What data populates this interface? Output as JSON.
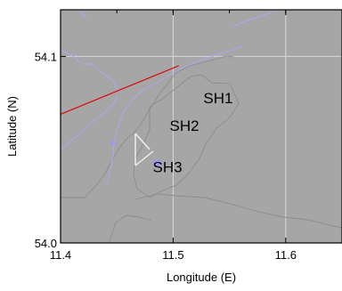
{
  "map": {
    "x_axis": {
      "label": "Longitude (E)",
      "range": [
        11.4,
        11.65
      ],
      "ticks": [
        {
          "value": 11.4,
          "label": "11.4"
        },
        {
          "value": 11.5,
          "label": "11.5"
        },
        {
          "value": 11.6,
          "label": "11.6"
        }
      ]
    },
    "y_axis": {
      "label": "Latitude (N)",
      "range": [
        54.0,
        54.125
      ],
      "ticks": [
        {
          "value": 54.0,
          "label": "54.0"
        },
        {
          "value": 54.1,
          "label": "54.1"
        }
      ]
    },
    "grid": true,
    "sites": [
      {
        "name": "SH1",
        "lon": 11.54,
        "lat": 54.075
      },
      {
        "name": "SH2",
        "lon": 11.51,
        "lat": 54.06
      },
      {
        "name": "SH3",
        "lon": 11.495,
        "lat": 54.038
      }
    ],
    "transect": {
      "from": [
        11.4,
        54.069
      ],
      "to": [
        11.505,
        54.095
      ]
    },
    "colors": {
      "background": "#a6a6a6",
      "grid": "#d9d9d9",
      "contour_grey": "#8c8c8c",
      "contour_blue": "#a9a9f0",
      "transect": "#e00000",
      "structure": "#f2f2f2"
    }
  }
}
